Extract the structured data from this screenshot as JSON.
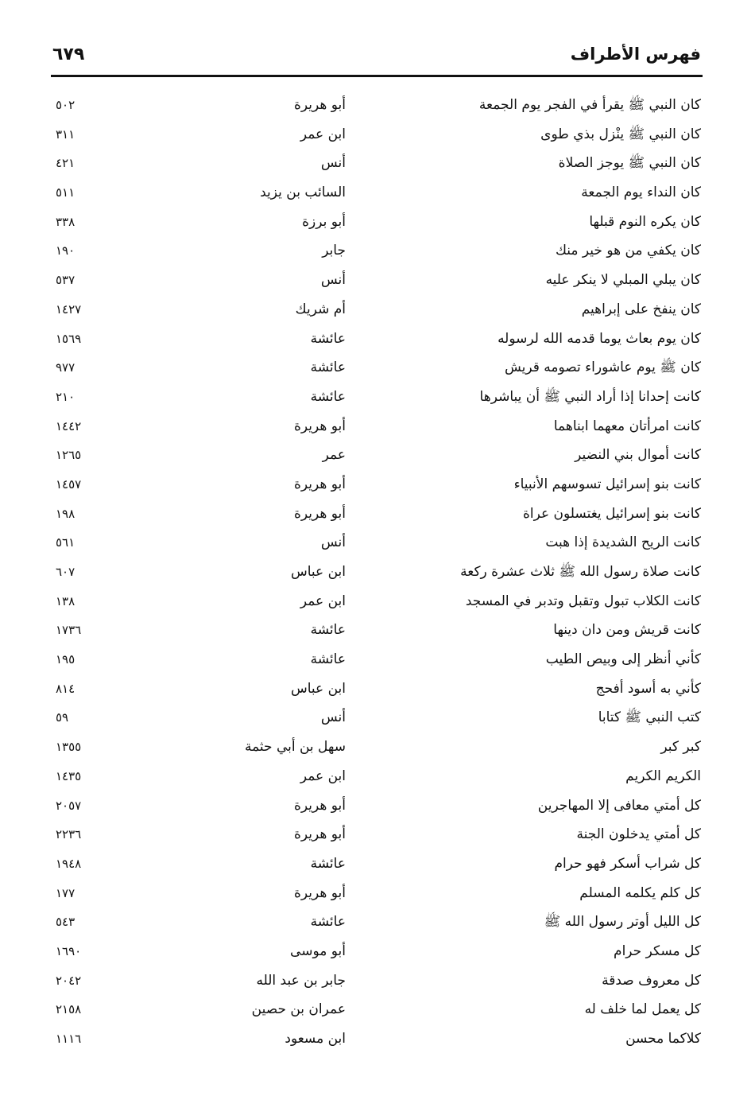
{
  "header": {
    "title": "فهرس الأطراف",
    "page_number": "٦٧٩"
  },
  "entries": [
    {
      "text": "كان النبي ﷺ يقرأ في الفجر يوم الجمعة",
      "narrator": "أبو هريرة",
      "number": "٥٠٢"
    },
    {
      "text": "كان النبي ﷺ ينْزل بذي طوى",
      "narrator": "ابن عمر",
      "number": "٣١١"
    },
    {
      "text": "كان النبي ﷺ يوجز الصلاة",
      "narrator": "أنس",
      "number": "٤٢١"
    },
    {
      "text": "كان النداء يوم الجمعة",
      "narrator": "السائب بن يزيد",
      "number": "٥١١"
    },
    {
      "text": "كان يكره النوم قبلها",
      "narrator": "أبو برزة",
      "number": "٣٣٨"
    },
    {
      "text": "كان يكفي من هو خير منك",
      "narrator": "جابر",
      "number": "١٩٠"
    },
    {
      "text": "كان يبلي المبلي لا ينكر عليه",
      "narrator": "أنس",
      "number": "٥٣٧"
    },
    {
      "text": "كان ينفخ على إبراهيم",
      "narrator": "أم شريك",
      "number": "١٤٢٧"
    },
    {
      "text": "كان يوم بعاث يوما قدمه الله لرسوله",
      "narrator": "عائشة",
      "number": "١٥٦٩"
    },
    {
      "text": "كان ﷺ يوم عاشوراء تصومه قريش",
      "narrator": "عائشة",
      "number": "٩٧٧"
    },
    {
      "text": "كانت إحدانا إذا أراد النبي ﷺ أن يباشرها",
      "narrator": "عائشة",
      "number": "٢١٠"
    },
    {
      "text": "كانت امرأتان معهما ابناهما",
      "narrator": "أبو هريرة",
      "number": "١٤٤٢"
    },
    {
      "text": "كانت أموال بني النضير",
      "narrator": "عمر",
      "number": "١٢٦٥"
    },
    {
      "text": "كانت بنو إسرائيل تسوسهم الأنبياء",
      "narrator": "أبو هريرة",
      "number": "١٤٥٧"
    },
    {
      "text": "كانت بنو إسرائيل يغتسلون عراة",
      "narrator": "أبو هريرة",
      "number": "١٩٨"
    },
    {
      "text": "كانت الريح الشديدة إذا هبت",
      "narrator": "أنس",
      "number": "٥٦١"
    },
    {
      "text": "كانت صلاة رسول الله ﷺ ثلاث عشرة ركعة",
      "narrator": "ابن عباس",
      "number": "٦٠٧"
    },
    {
      "text": "كانت الكلاب تبول وتقبل وتدبر في المسجد",
      "narrator": "ابن عمر",
      "number": "١٣٨"
    },
    {
      "text": "كانت قريش ومن دان دينها",
      "narrator": "عائشة",
      "number": "١٧٣٦"
    },
    {
      "text": "كأني أنظر إلى وبيص الطيب",
      "narrator": "عائشة",
      "number": "١٩٥"
    },
    {
      "text": "كأني به أسود أفحج",
      "narrator": "ابن عباس",
      "number": "٨١٤"
    },
    {
      "text": "كتب النبي ﷺ كتابا",
      "narrator": "أنس",
      "number": "٥٩"
    },
    {
      "text": "كبر كبر",
      "narrator": "سهل بن أبي حثمة",
      "number": "١٣٥٥"
    },
    {
      "text": "الكريم الكريم",
      "narrator": "ابن عمر",
      "number": "١٤٣٥"
    },
    {
      "text": "كل أمتي معافى إلا المهاجرين",
      "narrator": "أبو هريرة",
      "number": "٢٠٥٧"
    },
    {
      "text": "كل أمتي يدخلون الجنة",
      "narrator": "أبو هريرة",
      "number": "٢٢٣٦"
    },
    {
      "text": "كل شراب أسكر فهو حرام",
      "narrator": "عائشة",
      "number": "١٩٤٨"
    },
    {
      "text": "كل كلم يكلمه المسلم",
      "narrator": "أبو هريرة",
      "number": "١٧٧"
    },
    {
      "text": "كل الليل أوتر رسول الله ﷺ",
      "narrator": "عائشة",
      "number": "٥٤٣"
    },
    {
      "text": "كل مسكر حرام",
      "narrator": "أبو موسى",
      "number": "١٦٩٠"
    },
    {
      "text": "كل معروف صدقة",
      "narrator": "جابر بن عبد الله",
      "number": "٢٠٤٢"
    },
    {
      "text": "كل يعمل لما خلف له",
      "narrator": "عمران بن حصين",
      "number": "٢١٥٨"
    },
    {
      "text": "كلاكما محسن",
      "narrator": "ابن مسعود",
      "number": "١١١٦"
    }
  ]
}
